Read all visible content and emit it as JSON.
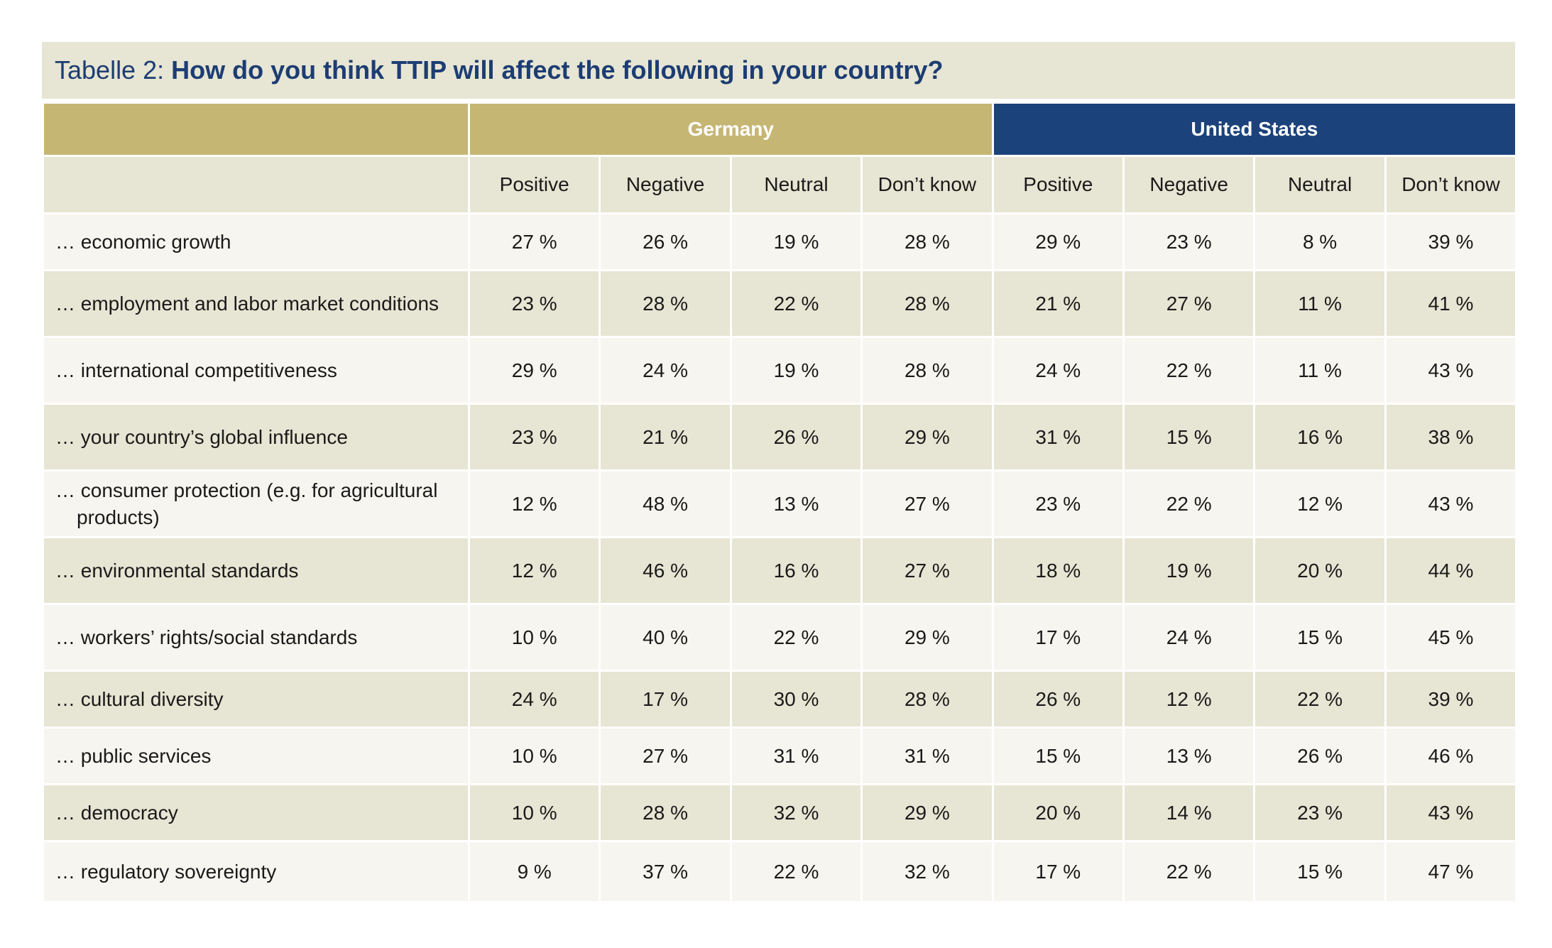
{
  "title": {
    "prefix": "Tabelle 2: ",
    "text": "How do you think TTIP will affect the following in your country?"
  },
  "groups": [
    "Germany",
    "United States"
  ],
  "subheaders": [
    "Positive",
    "Negative",
    "Neutral",
    "Don’t know",
    "Positive",
    "Negative",
    "Neutral",
    "Don’t know"
  ],
  "rows": [
    {
      "label": "… economic growth",
      "values": [
        "27 %",
        "26 %",
        "19 %",
        "28 %",
        "29 %",
        "23 %",
        "8 %",
        "39 %"
      ]
    },
    {
      "label": "… employment and labor market conditions",
      "values": [
        "23 %",
        "28 %",
        "22 %",
        "28 %",
        "21 %",
        "27 %",
        "11 %",
        "41 %"
      ]
    },
    {
      "label": "… international competitiveness",
      "values": [
        "29 %",
        "24 %",
        "19 %",
        "28 %",
        "24 %",
        "22 %",
        "11 %",
        "43 %"
      ]
    },
    {
      "label": "… your country’s global influence",
      "values": [
        "23 %",
        "21 %",
        "26 %",
        "29 %",
        "31 %",
        "15 %",
        "16 %",
        "38 %"
      ]
    },
    {
      "label": "… consumer protection (e.g. for agricultural products)",
      "values": [
        "12 %",
        "48 %",
        "13 %",
        "27 %",
        "23 %",
        "22 %",
        "12 %",
        "43 %"
      ]
    },
    {
      "label": "… environmental standards",
      "values": [
        "12 %",
        "46 %",
        "16 %",
        "27 %",
        "18 %",
        "19 %",
        "20 %",
        "44 %"
      ]
    },
    {
      "label": "… workers’ rights/social standards",
      "values": [
        "10 %",
        "40 %",
        "22 %",
        "29 %",
        "17 %",
        "24 %",
        "15 %",
        "45 %"
      ]
    },
    {
      "label": "… cultural diversity",
      "values": [
        "24 %",
        "17 %",
        "30 %",
        "28 %",
        "26 %",
        "12 %",
        "22 %",
        "39 %"
      ]
    },
    {
      "label": "… public services",
      "values": [
        "10 %",
        "27 %",
        "31 %",
        "31 %",
        "15 %",
        "13 %",
        "26 %",
        "46 %"
      ]
    },
    {
      "label": "… democracy",
      "values": [
        "10 %",
        "28 %",
        "32 %",
        "29 %",
        "20 %",
        "14 %",
        "23 %",
        "43 %"
      ]
    },
    {
      "label": "… regulatory sovereignty",
      "values": [
        "9 %",
        "37 %",
        "22 %",
        "32 %",
        "17 %",
        "22 %",
        "15 %",
        "47 %"
      ]
    }
  ],
  "colors": {
    "title_text": "#1c3d73",
    "germany": "#c6b673",
    "united_states": "#1b427b",
    "band_light": "#f7f5ef",
    "band_dark": "#e7e5d3"
  }
}
